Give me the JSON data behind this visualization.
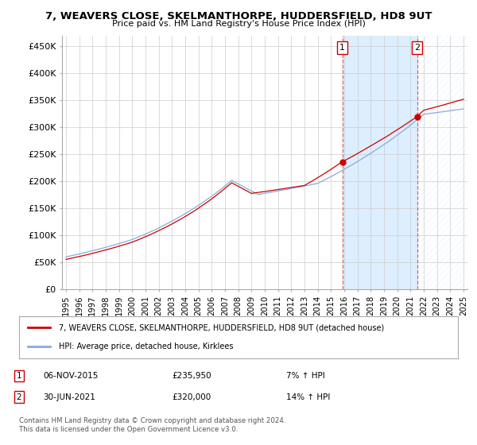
{
  "title_line1": "7, WEAVERS CLOSE, SKELMANTHORPE, HUDDERSFIELD, HD8 9UT",
  "title_line2": "Price paid vs. HM Land Registry's House Price Index (HPI)",
  "ylabel_ticks": [
    "£0",
    "£50K",
    "£100K",
    "£150K",
    "£200K",
    "£250K",
    "£300K",
    "£350K",
    "£400K",
    "£450K"
  ],
  "ytick_values": [
    0,
    50000,
    100000,
    150000,
    200000,
    250000,
    300000,
    350000,
    400000,
    450000
  ],
  "ylim": [
    0,
    470000
  ],
  "xlim_start": 1994.7,
  "xlim_end": 2025.3,
  "sale1_date": "06-NOV-2015",
  "sale1_price": 235950,
  "sale1_label": "1",
  "sale1_pct": "7% ↑ HPI",
  "sale1_x": 2015.85,
  "sale2_date": "30-JUN-2021",
  "sale2_price": 320000,
  "sale2_label": "2",
  "sale2_pct": "14% ↑ HPI",
  "sale2_x": 2021.5,
  "legend_line1": "7, WEAVERS CLOSE, SKELMANTHORPE, HUDDERSFIELD, HD8 9UT (detached house)",
  "legend_line2": "HPI: Average price, detached house, Kirklees",
  "footer": "Contains HM Land Registry data © Crown copyright and database right 2024.\nThis data is licensed under the Open Government Licence v3.0.",
  "line_color_red": "#cc0000",
  "line_color_blue": "#88aadd",
  "shaded_color": "#ddeeff",
  "vline_color": "#dd6666",
  "background_color": "#ffffff",
  "grid_color": "#cccccc"
}
